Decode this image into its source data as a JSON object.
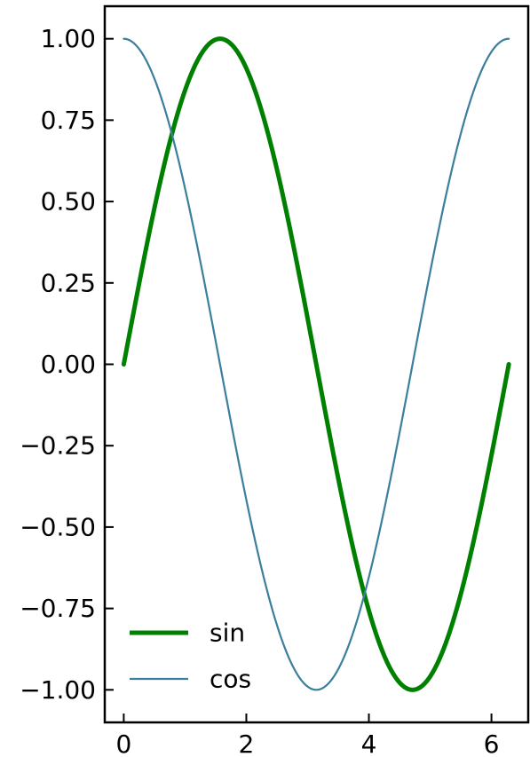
{
  "chart_data": {
    "type": "line",
    "title": "",
    "xlabel": "",
    "ylabel": "",
    "xlim": [
      -0.31,
      6.6
    ],
    "ylim": [
      -1.1,
      1.1
    ],
    "xticks": [
      0,
      2,
      4,
      6
    ],
    "xtick_labels": [
      "0",
      "2",
      "4",
      "6"
    ],
    "yticks": [
      1.0,
      0.75,
      0.5,
      0.25,
      0.0,
      -0.25,
      -0.5,
      -0.75,
      -1.0
    ],
    "ytick_labels": [
      "1.00",
      "0.75",
      "0.50",
      "0.25",
      "0.00",
      "−0.25",
      "−0.50",
      "−0.75",
      "−1.00"
    ],
    "tick_direction": "in",
    "grid": false,
    "legend_position": "lower-left",
    "series": [
      {
        "name": "sin",
        "color": "#008000",
        "style": "thick",
        "x": [
          0,
          0.2618,
          0.5236,
          0.7854,
          1.0472,
          1.309,
          1.5708,
          1.8326,
          2.0944,
          2.3562,
          2.618,
          2.8798,
          3.1416,
          3.4034,
          3.6652,
          3.927,
          4.1888,
          4.4506,
          4.7124,
          4.9742,
          5.236,
          5.4978,
          5.7596,
          6.0214,
          6.2832
        ],
        "y": [
          0.0,
          0.2588,
          0.5,
          0.7071,
          0.866,
          0.9659,
          1.0,
          0.9659,
          0.866,
          0.7071,
          0.5,
          0.2588,
          0.0,
          -0.2588,
          -0.5,
          -0.7071,
          -0.866,
          -0.9659,
          -1.0,
          -0.9659,
          -0.866,
          -0.7071,
          -0.5,
          -0.2588,
          0.0
        ]
      },
      {
        "name": "cos",
        "color": "#3b7f9c",
        "style": "thin",
        "x": [
          0,
          0.2618,
          0.5236,
          0.7854,
          1.0472,
          1.309,
          1.5708,
          1.8326,
          2.0944,
          2.3562,
          2.618,
          2.8798,
          3.1416,
          3.4034,
          3.6652,
          3.927,
          4.1888,
          4.4506,
          4.7124,
          4.9742,
          5.236,
          5.4978,
          5.7596,
          6.0214,
          6.2832
        ],
        "y": [
          1.0,
          0.9659,
          0.866,
          0.7071,
          0.5,
          0.2588,
          0.0,
          -0.2588,
          -0.5,
          -0.7071,
          -0.866,
          -0.9659,
          -1.0,
          -0.9659,
          -0.866,
          -0.7071,
          -0.5,
          -0.2588,
          0.0,
          0.2588,
          0.5,
          0.7071,
          0.866,
          0.9659,
          1.0
        ]
      }
    ]
  }
}
